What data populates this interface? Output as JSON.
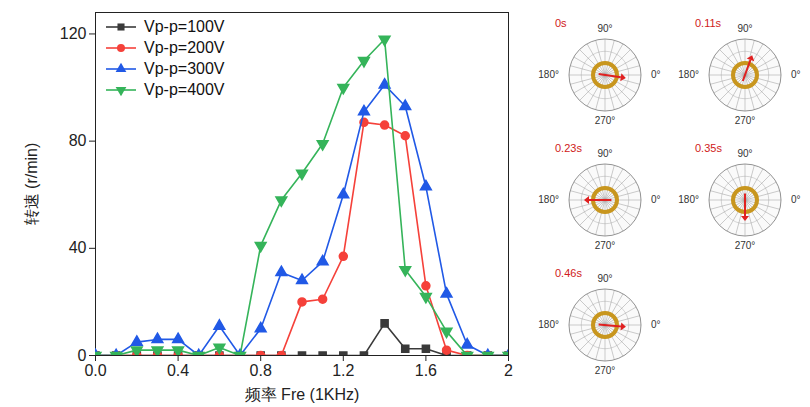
{
  "chart_data": {
    "type": "line",
    "x_label": "频率 Fre (1KHz)",
    "y_label": "转速 (r/min)",
    "x": [
      0,
      0.1,
      0.2,
      0.3,
      0.4,
      0.5,
      0.6,
      0.7,
      0.8,
      0.9,
      1.0,
      1.1,
      1.2,
      1.3,
      1.4,
      1.5,
      1.6,
      1.7,
      1.8,
      1.9,
      2.0
    ],
    "xlim": [
      0,
      2
    ],
    "xticks": [
      {
        "value": 0,
        "label": "0.0"
      },
      0.4,
      0.8,
      1.2,
      1.6,
      2
    ],
    "ylim": [
      0,
      128
    ],
    "yticks": [
      0,
      40,
      80,
      120
    ],
    "grid": false,
    "legend": "top-left",
    "series": [
      {
        "name": "Vp-p=100V",
        "color": "#3a3a3a",
        "marker": "square",
        "values": [
          0,
          0,
          0,
          0,
          0,
          0,
          0,
          0,
          0,
          0,
          0,
          0,
          0,
          0,
          12,
          2.5,
          2.5,
          0,
          0,
          0,
          0
        ]
      },
      {
        "name": "Vp-p=200V",
        "color": "#f5413a",
        "marker": "circle",
        "values": [
          0,
          0,
          0,
          0,
          0,
          0,
          0,
          0,
          0,
          0,
          20,
          21,
          37,
          87,
          86,
          82,
          26,
          2,
          0,
          0,
          0
        ]
      },
      {
        "name": "Vp-p=300V",
        "color": "#2159e6",
        "marker": "triangle",
        "values": [
          0,
          0,
          5,
          6,
          6,
          0,
          11,
          0,
          10,
          31,
          28,
          35,
          60,
          91,
          101,
          93,
          63,
          23,
          4,
          0,
          0
        ]
      },
      {
        "name": "Vp-p=400V",
        "color": "#35b45a",
        "marker": "triangle-down",
        "values": [
          0,
          0,
          2,
          2,
          2,
          0,
          3,
          0,
          41,
          58,
          68,
          79,
          100,
          110,
          118,
          32,
          22,
          9,
          0,
          0,
          0
        ]
      }
    ]
  },
  "snapshots": {
    "angle_labels": [
      {
        "value": 90,
        "label": "90°"
      },
      {
        "value": 180,
        "label": "180°"
      },
      {
        "value": 0,
        "label": "0°"
      },
      {
        "value": 270,
        "label": "270°"
      }
    ],
    "frames": [
      {
        "time": "0s",
        "arrow_angle": -8
      },
      {
        "time": "0.11s",
        "arrow_angle": 70
      },
      {
        "time": "0.23s",
        "arrow_angle": 180
      },
      {
        "time": "0.35s",
        "arrow_angle": 270
      },
      {
        "time": "0.46s",
        "arrow_angle": -5
      }
    ]
  }
}
